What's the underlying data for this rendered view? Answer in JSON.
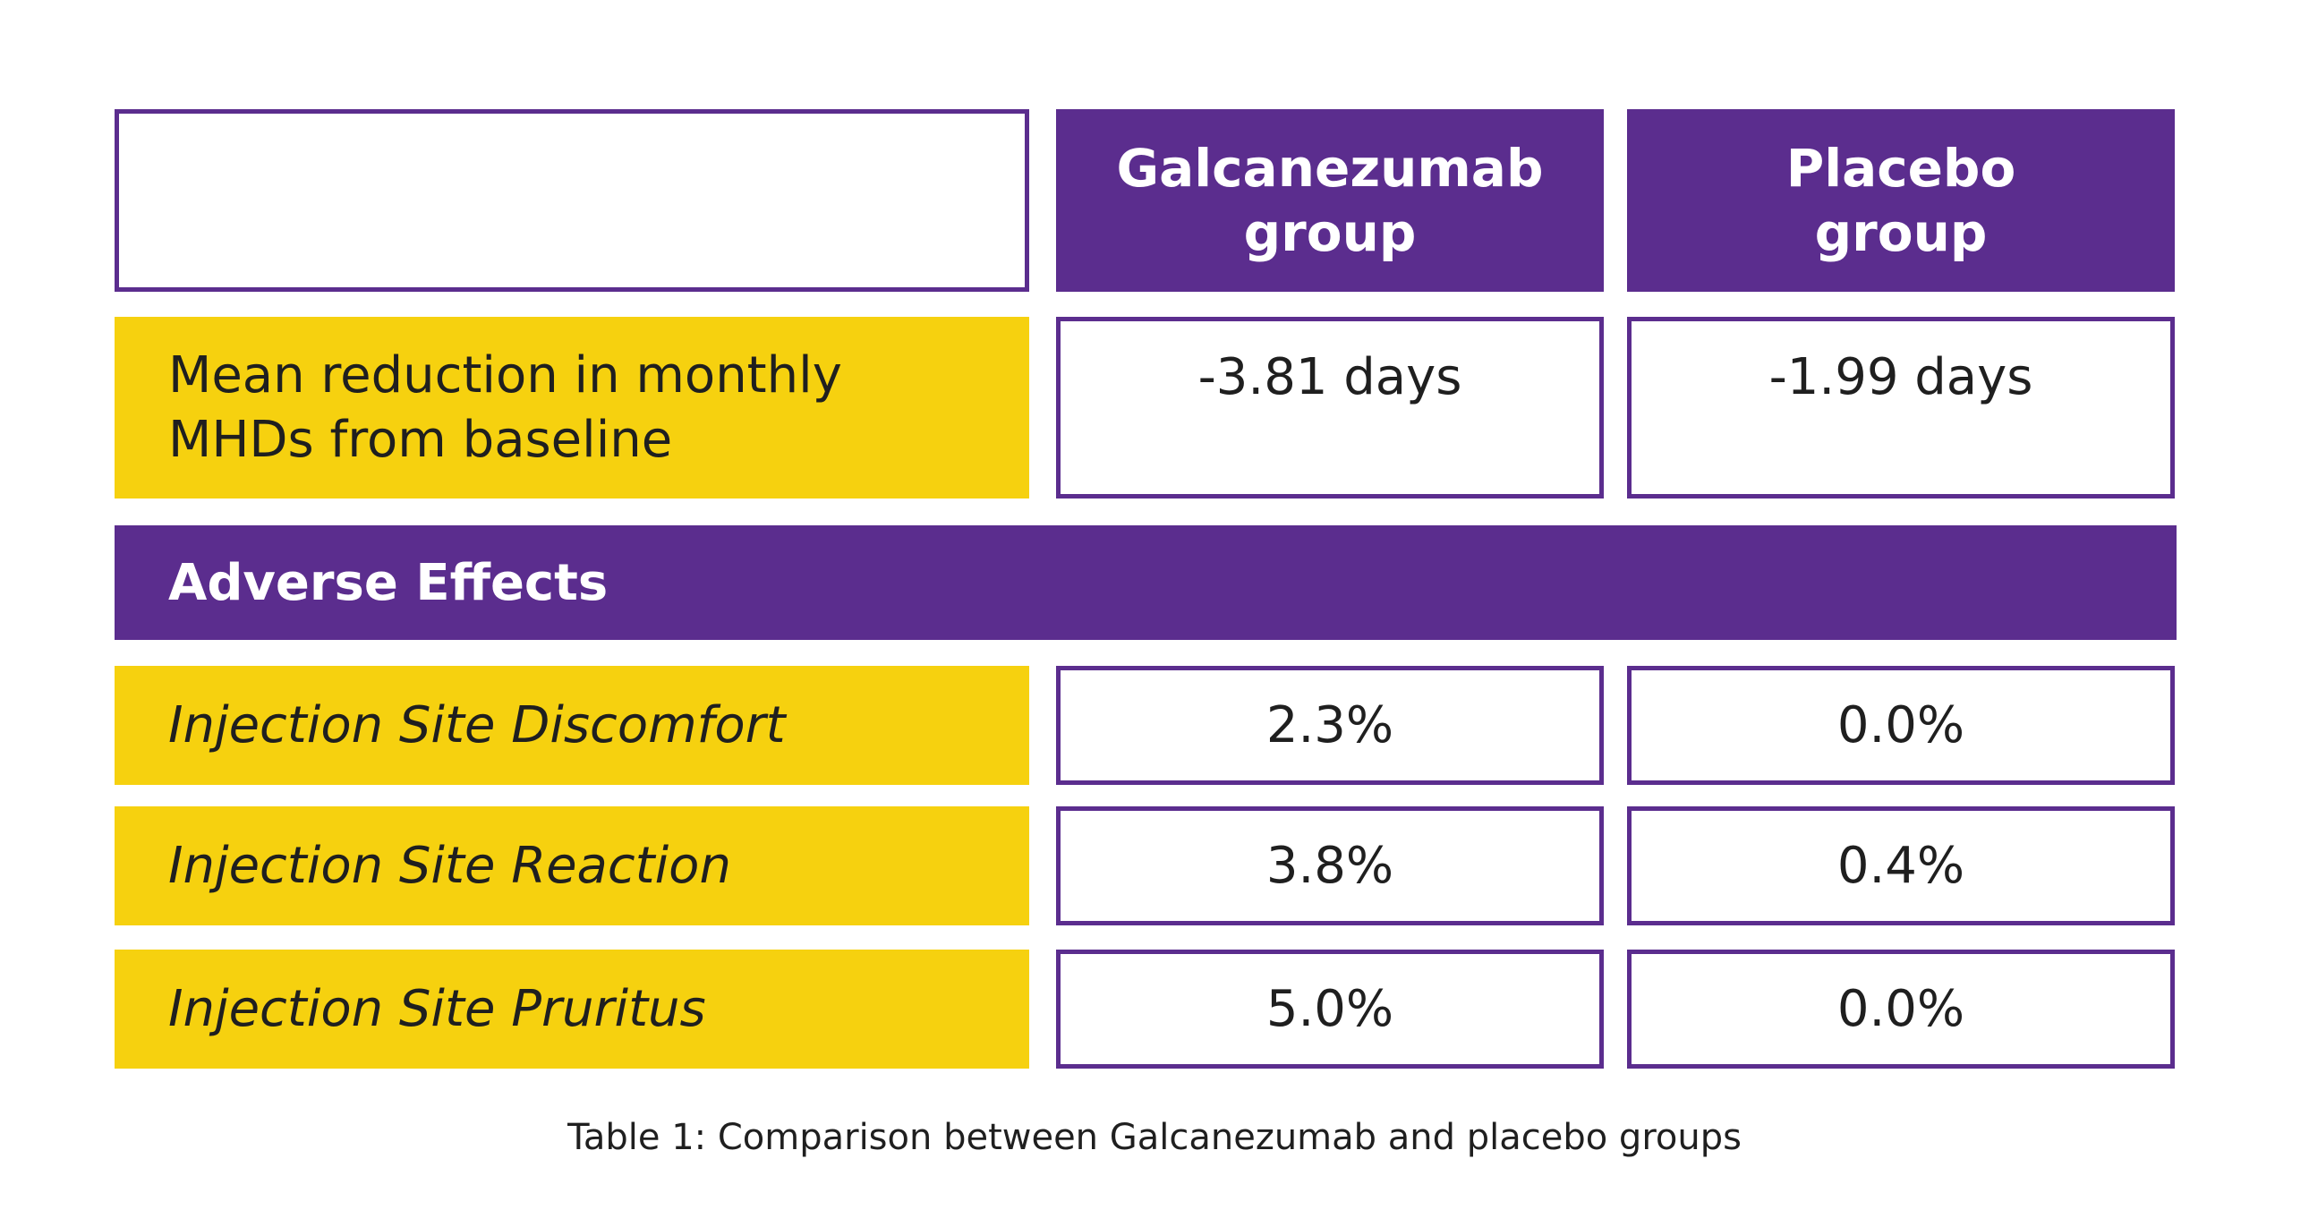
{
  "header": {
    "col1": "Galcanezumab group",
    "col2": "Placebo group"
  },
  "efficacy_row": {
    "label": "Mean reduction in monthly MHDs from baseline",
    "galcanezumab": "-3.81 days",
    "placebo": "-1.99 days"
  },
  "section_title": "Adverse Effects",
  "adverse_rows": [
    {
      "label": "Injection Site Discomfort",
      "galcanezumab": "2.3%",
      "placebo": "0.0%"
    },
    {
      "label": "Injection Site Reaction",
      "galcanezumab": "3.8%",
      "placebo": "0.4%"
    },
    {
      "label": "Injection Site Pruritus",
      "galcanezumab": "5.0%",
      "placebo": "0.0%"
    }
  ],
  "caption": "Table 1: Comparison between Galcanezumab and placebo groups",
  "colors": {
    "purple": "#5b2d8e",
    "yellow": "#f6d10f"
  }
}
